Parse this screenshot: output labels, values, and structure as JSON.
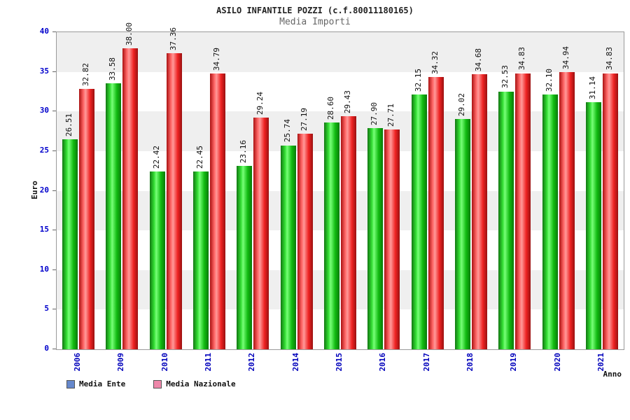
{
  "chart_data": {
    "type": "bar",
    "title": "ASILO INFANTILE POZZI (c.f.80011180165)",
    "subtitle": "Media Importi",
    "xlabel": "Anno",
    "ylabel": "Euro",
    "ylim": [
      0,
      40
    ],
    "yticks": [
      0,
      5,
      10,
      15,
      20,
      25,
      30,
      35,
      40
    ],
    "grid": "alternating-horizontal-bands",
    "legend_position": "bottom-left",
    "categories": [
      "2006",
      "2009",
      "2010",
      "2011",
      "2012",
      "2014",
      "2015",
      "2016",
      "2017",
      "2018",
      "2019",
      "2020",
      "2021"
    ],
    "series": [
      {
        "name": "Media Ente",
        "bar_color": "#22cc22",
        "legend_swatch_color": "#6688cc",
        "values": [
          26.51,
          33.58,
          22.42,
          22.45,
          23.16,
          25.74,
          28.6,
          27.9,
          32.15,
          29.02,
          32.53,
          32.1,
          31.14
        ]
      },
      {
        "name": "Media Nazionale",
        "bar_color": "#ee3333",
        "legend_swatch_color": "#ee88aa",
        "values": [
          32.82,
          38.0,
          37.36,
          34.79,
          29.24,
          27.19,
          29.43,
          27.71,
          34.32,
          34.68,
          34.83,
          34.94,
          34.83
        ]
      }
    ],
    "colors": {
      "axis_tick_text": "#0000cc",
      "category_text": "#0000bb",
      "band_gray": "#efefef",
      "band_white": "#ffffff",
      "plot_border": "#9a9a9a"
    }
  }
}
